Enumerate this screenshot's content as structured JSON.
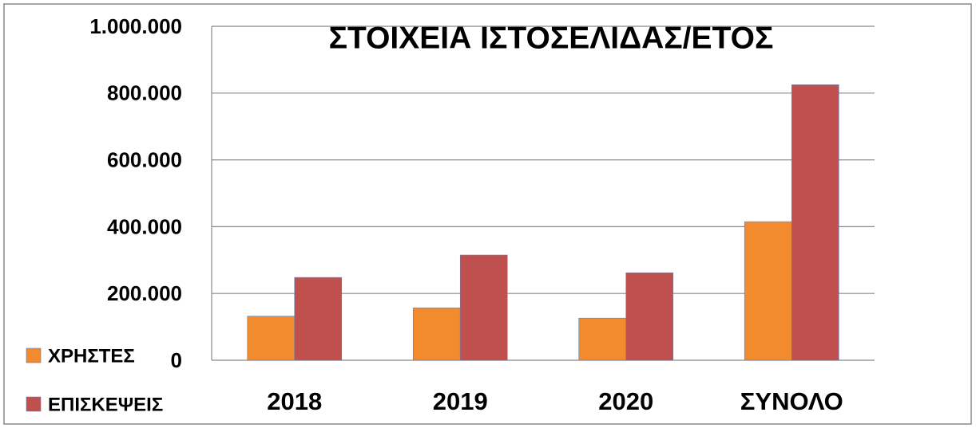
{
  "chart_data": {
    "type": "bar",
    "title": "ΣΤΟΙΧΕΙΑ ΙΣΤΟΣΕΛΙΔΑΣ/ΕΤΟΣ",
    "categories": [
      "2018",
      "2019",
      "2020",
      "ΣΥΝΟΛΟ"
    ],
    "series": [
      {
        "name": "ΧΡΗΣΤΕΣ",
        "color": "#f28a2e",
        "values": [
          132000,
          157000,
          126000,
          415000
        ]
      },
      {
        "name": "ΕΠΙΣΚΕΨΕΙΣ",
        "color": "#c0504d",
        "values": [
          248000,
          315000,
          262000,
          825000
        ]
      }
    ],
    "ylim": [
      0,
      1000000
    ],
    "yticks": [
      0,
      {
        "value": 200000,
        "label": "200.000"
      },
      {
        "value": 400000,
        "label": "400.000"
      },
      {
        "value": 600000,
        "label": "600.000"
      },
      {
        "value": 800000,
        "label": "800.000"
      },
      {
        "value": 1000000,
        "label": "1.000.000"
      }
    ],
    "grid": true,
    "legend": "left"
  }
}
